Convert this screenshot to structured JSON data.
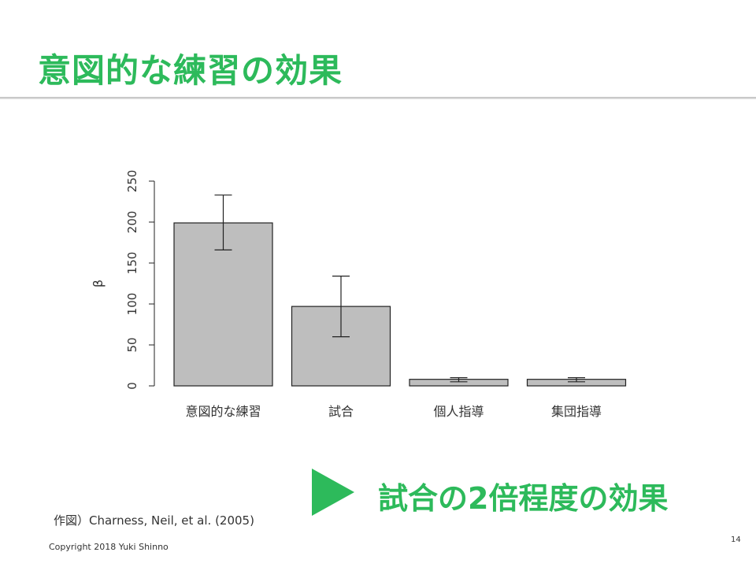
{
  "slide": {
    "title": "意図的な練習の効果",
    "conclusion": "試合の2倍程度の効果",
    "source": "作図）Charness, Neil, et al. (2005)",
    "copyright": "Copyright 2018 Yuki Shinno",
    "page_number": "14"
  },
  "colors": {
    "accent": "#2dba5b",
    "bar_fill": "#bebebe",
    "bar_stroke": "#222222"
  },
  "chart_data": {
    "type": "bar",
    "categories": [
      "意図的な練習",
      "試合",
      "個人指導",
      "集団指導"
    ],
    "values": [
      199,
      97,
      8,
      8
    ],
    "error_low": [
      166,
      60,
      5,
      5
    ],
    "error_high": [
      233,
      134,
      10,
      10
    ],
    "ylabel": "β",
    "xlabel": "",
    "ylim": [
      0,
      250
    ],
    "yticks": [
      0,
      50,
      100,
      150,
      200,
      250
    ],
    "grid": false
  }
}
